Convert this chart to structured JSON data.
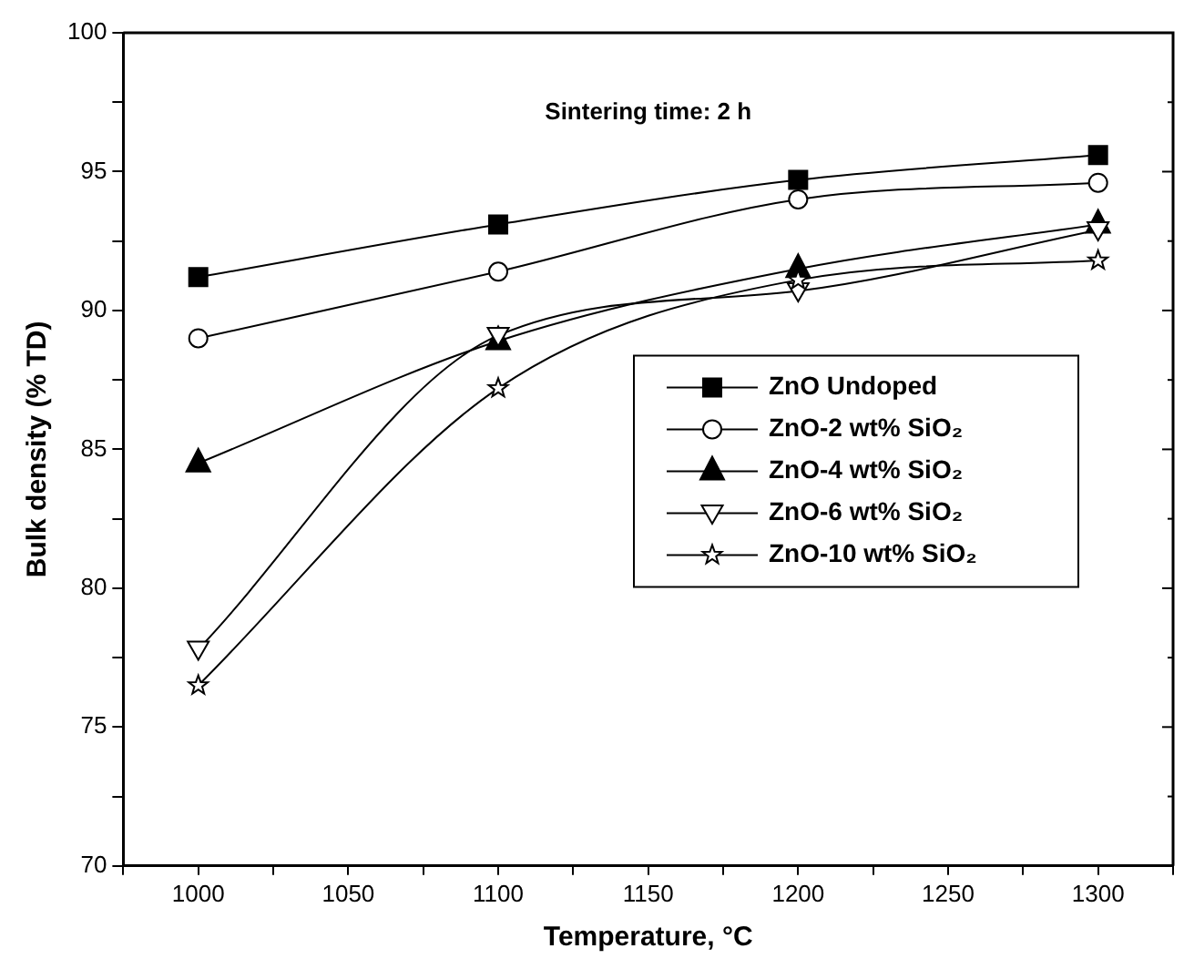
{
  "chart_data": {
    "type": "line",
    "xlabel": "Temperature, °C",
    "ylabel": "Bulk density (% TD)",
    "annotations": [
      "Sintering time: 2 h"
    ],
    "x": [
      1000,
      1100,
      1200,
      1300
    ],
    "series": [
      {
        "name": "ZnO Undoped",
        "color": "#000000",
        "marker": "square",
        "values": [
          91.2,
          93.1,
          94.7,
          95.6
        ]
      },
      {
        "name": "ZnO-2 wt% SiO₂",
        "color": "#000000",
        "marker": "circle",
        "values": [
          89.0,
          91.4,
          94.0,
          94.6
        ]
      },
      {
        "name": "ZnO-4 wt% SiO₂",
        "color": "#000000",
        "marker": "triangle",
        "values": [
          84.5,
          88.9,
          91.5,
          93.1
        ]
      },
      {
        "name": "ZnO-6 wt% SiO₂",
        "color": "#000000",
        "marker": "triangle-down",
        "values": [
          77.8,
          89.1,
          90.7,
          92.9
        ]
      },
      {
        "name": "ZnO-10 wt% SiO₂",
        "color": "#000000",
        "marker": "star",
        "values": [
          76.5,
          87.2,
          91.1,
          91.8
        ]
      }
    ],
    "xlim": [
      975,
      1325
    ],
    "xticks": [
      {
        "value": 975,
        "label": null
      },
      1000,
      {
        "value": 1025,
        "label": null
      },
      1050,
      {
        "value": 1075,
        "label": null
      },
      1100,
      {
        "value": 1125,
        "label": null
      },
      1150,
      {
        "value": 1175,
        "label": null
      },
      1200,
      {
        "value": 1225,
        "label": null
      },
      1250,
      {
        "value": 1275,
        "label": null
      },
      1300,
      {
        "value": 1325,
        "label": null
      }
    ],
    "ylim": [
      70,
      100
    ],
    "yticks": [
      70,
      {
        "value": 72.5,
        "label": null
      },
      75,
      {
        "value": 77.5,
        "label": null
      },
      80,
      {
        "value": 82.5,
        "label": null
      },
      85,
      {
        "value": 87.5,
        "label": null
      },
      90,
      {
        "value": 92.5,
        "label": null
      },
      95,
      {
        "value": 97.5,
        "label": null
      },
      100
    ],
    "grid": false,
    "legend": "right",
    "line_style": "solid"
  }
}
